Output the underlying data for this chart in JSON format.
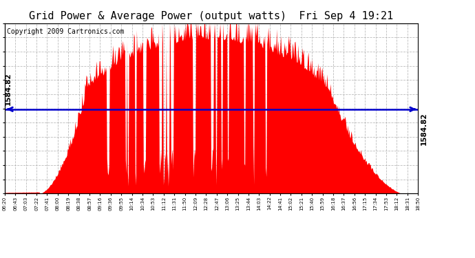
{
  "title": "Grid Power & Average Power (output watts)  Fri Sep 4 19:21",
  "copyright": "Copyright 2009 Cartronics.com",
  "average_value": 1584.82,
  "y_max": 3203.8,
  "y_ticks": [
    0.0,
    267.0,
    534.0,
    800.9,
    1067.9,
    1334.9,
    1601.9,
    1868.9,
    2135.9,
    2402.8,
    2669.8,
    2936.8,
    3203.8
  ],
  "x_labels": [
    "06:20",
    "06:43",
    "07:03",
    "07:22",
    "07:41",
    "08:00",
    "08:19",
    "08:38",
    "08:57",
    "09:16",
    "09:36",
    "09:55",
    "10:14",
    "10:34",
    "10:53",
    "11:12",
    "11:31",
    "11:50",
    "12:09",
    "12:28",
    "12:47",
    "13:06",
    "13:25",
    "13:44",
    "14:03",
    "14:22",
    "14:41",
    "15:02",
    "15:21",
    "15:40",
    "15:59",
    "16:18",
    "16:37",
    "16:56",
    "17:15",
    "17:34",
    "17:53",
    "18:12",
    "18:31",
    "18:50"
  ],
  "fill_color": "#FF0000",
  "line_color": "#0000CC",
  "background_color": "#FFFFFF",
  "grid_color": "#AAAAAA",
  "title_fontsize": 11,
  "copyright_fontsize": 7,
  "avg_label_fontsize": 7.5
}
